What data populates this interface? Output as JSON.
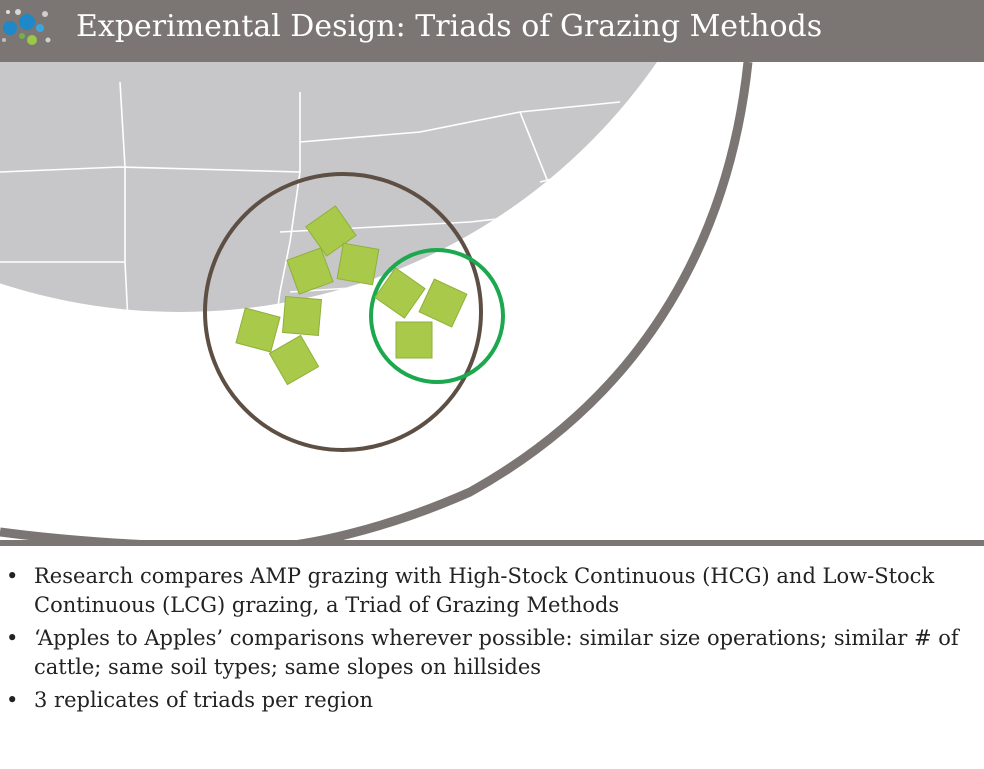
{
  "title": "Experimental  Design: Triads of Grazing Methods",
  "colors": {
    "title_bar": "#7b7673",
    "map_land": "#c7c7c9",
    "map_border": "#ffffff",
    "globe_rim": "#7b7673",
    "triad_square": "#a9c94a",
    "large_circle": "#5e4f44",
    "small_circle": "#1ca84e"
  },
  "icons": {
    "logo": "colored-dots-logo"
  },
  "bullets": [
    "Research compares AMP grazing with High-Stock Continuous (HCG) and Low-Stock Continuous (LCG) grazing, a Triad of Grazing Methods",
    "‘Apples to Apples’ comparisons wherever possible: similar size operations; similar # of cattle; same soil types; same slopes on hillsides",
    "3 replicates of triads per region"
  ],
  "bullet_symbol": "•"
}
